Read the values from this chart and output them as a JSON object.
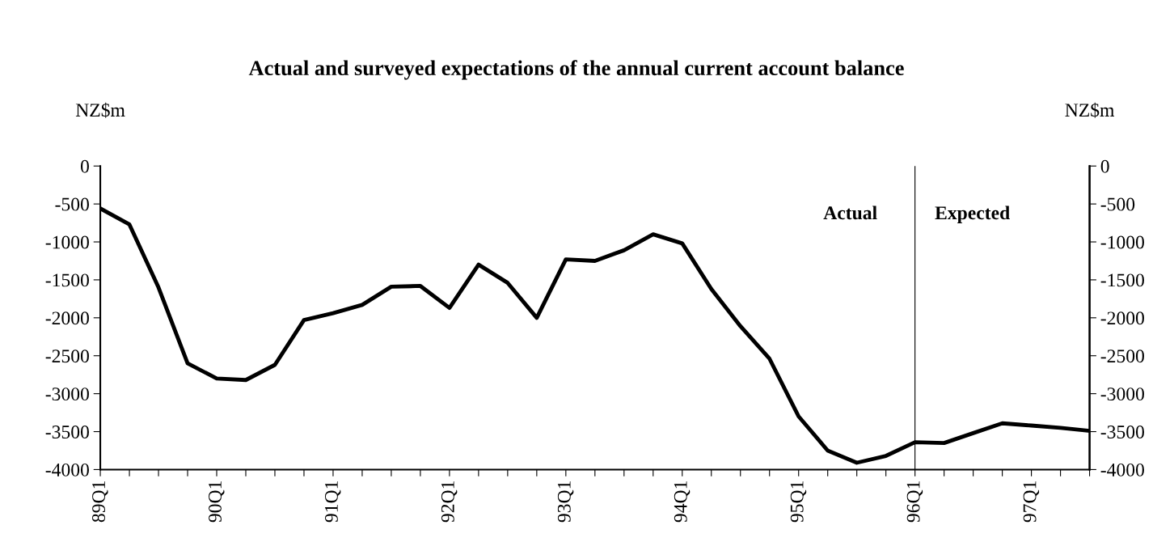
{
  "chart_data": {
    "type": "line",
    "title": "Actual and surveyed expectations of the annual current account balance",
    "ylabel": "NZ$m",
    "y2label": "NZ$m",
    "categories": [
      "89Q1",
      null,
      null,
      null,
      "90Q1",
      null,
      null,
      null,
      "91Q1",
      null,
      null,
      null,
      "92Q1",
      null,
      null,
      null,
      "93Q1",
      null,
      null,
      null,
      "94Q1",
      null,
      null,
      null,
      "95Q1",
      null,
      null,
      null,
      "96Q1",
      null,
      null,
      null,
      "97Q1",
      null,
      null
    ],
    "series": [
      {
        "color": "#000000",
        "values": [
          -560,
          -770,
          -1600,
          -2600,
          -2800,
          -2820,
          -2620,
          -2030,
          -1940,
          -1830,
          -1590,
          -1580,
          -1870,
          -1300,
          -1540,
          -2000,
          -1230,
          -1250,
          -1110,
          -900,
          -1020,
          -1620,
          -2110,
          -2540,
          -3300,
          -3750,
          -3910,
          -3820,
          -3640,
          -3650,
          -3520,
          -3390,
          -3420,
          -3450,
          -3490
        ]
      }
    ],
    "ylim": [
      -4000,
      0
    ],
    "yticks": [
      -4000,
      -3500,
      -3000,
      -2500,
      -2000,
      -1500,
      -1000,
      -500,
      0
    ],
    "y2lim": [
      -4000,
      0
    ],
    "y2ticks": [
      -4000,
      -3500,
      -3000,
      -2500,
      -2000,
      -1500,
      -1000,
      -500,
      0
    ],
    "annotations": [
      "Actual",
      "Expected"
    ],
    "legend": false,
    "marker": "none",
    "line_style": "solid"
  }
}
